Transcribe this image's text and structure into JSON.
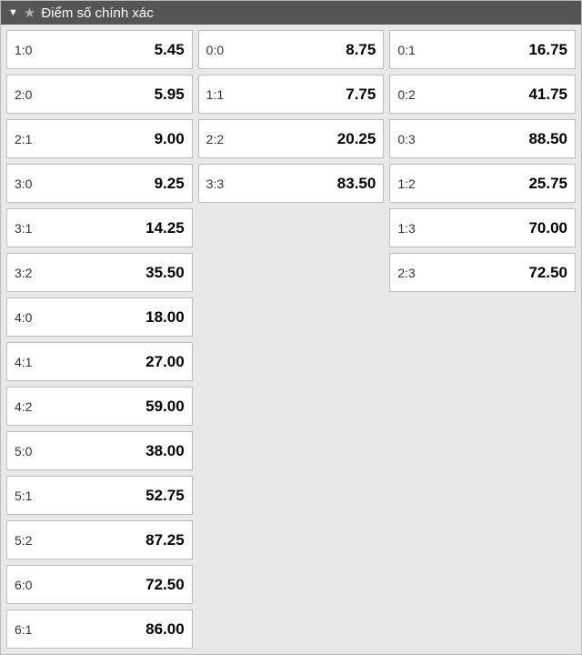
{
  "header": {
    "title": "Điểm số chính xác"
  },
  "columns": [
    {
      "id": "home-wins",
      "cells": [
        {
          "score": "1:0",
          "odds": "5.45"
        },
        {
          "score": "2:0",
          "odds": "5.95"
        },
        {
          "score": "2:1",
          "odds": "9.00"
        },
        {
          "score": "3:0",
          "odds": "9.25"
        },
        {
          "score": "3:1",
          "odds": "14.25"
        },
        {
          "score": "3:2",
          "odds": "35.50"
        },
        {
          "score": "4:0",
          "odds": "18.00"
        },
        {
          "score": "4:1",
          "odds": "27.00"
        },
        {
          "score": "4:2",
          "odds": "59.00"
        },
        {
          "score": "5:0",
          "odds": "38.00"
        },
        {
          "score": "5:1",
          "odds": "52.75"
        },
        {
          "score": "5:2",
          "odds": "87.25"
        },
        {
          "score": "6:0",
          "odds": "72.50"
        },
        {
          "score": "6:1",
          "odds": "86.00"
        }
      ]
    },
    {
      "id": "draws",
      "cells": [
        {
          "score": "0:0",
          "odds": "8.75"
        },
        {
          "score": "1:1",
          "odds": "7.75"
        },
        {
          "score": "2:2",
          "odds": "20.25"
        },
        {
          "score": "3:3",
          "odds": "83.50"
        }
      ]
    },
    {
      "id": "away-wins",
      "cells": [
        {
          "score": "0:1",
          "odds": "16.75"
        },
        {
          "score": "0:2",
          "odds": "41.75"
        },
        {
          "score": "0:3",
          "odds": "88.50"
        },
        {
          "score": "1:2",
          "odds": "25.75"
        },
        {
          "score": "1:3",
          "odds": "70.00"
        },
        {
          "score": "2:3",
          "odds": "72.50"
        }
      ]
    }
  ],
  "colors": {
    "header_bg": "#555555",
    "header_text": "#ffffff",
    "body_bg": "#e8e8e8",
    "cell_bg": "#ffffff",
    "cell_border": "#bdbdbd",
    "star": "#b0b0b0"
  }
}
